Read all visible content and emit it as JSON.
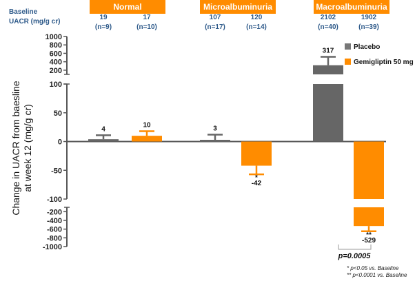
{
  "chart_data": {
    "type": "bar",
    "ylabel": [
      "Change in UACR from baesline",
      "at week 12 (mg/g cr)"
    ],
    "baseline_label": [
      "Baseline",
      "UACR (mg/g cr)"
    ],
    "groups": [
      "Normal",
      "Microalbuminuria",
      "Macroalbuminuria"
    ],
    "series": [
      {
        "name": "Placebo",
        "color": "#666666",
        "values": [
          4,
          3,
          317
        ],
        "errors": [
          7,
          9,
          200
        ],
        "labels": [
          "4",
          "3",
          "317"
        ],
        "baseline": [
          "19",
          "107",
          "2102"
        ],
        "n": [
          "(n=9)",
          "(n=17)",
          "(n=40)"
        ],
        "sig": [
          "",
          "",
          ""
        ]
      },
      {
        "name": "Gemigliptin 50 mg",
        "color": "#ff8c00",
        "values": [
          10,
          -42,
          -529
        ],
        "errors": [
          8,
          15,
          120
        ],
        "labels": [
          "10",
          "-42",
          "-529"
        ],
        "baseline": [
          "17",
          "120",
          "1902"
        ],
        "n": [
          "(n=10)",
          "(n=14)",
          "(n=39)"
        ],
        "sig": [
          "",
          "*",
          "**"
        ]
      }
    ],
    "axis_segments": [
      {
        "range": [
          100,
          1000
        ],
        "ticks": [
          "1000",
          "800",
          "600",
          "400",
          "200"
        ],
        "tick_values": [
          1000,
          800,
          600,
          400,
          200
        ]
      },
      {
        "range": [
          -100,
          100
        ],
        "ticks": [
          "100",
          "50",
          "0",
          "-50",
          "-100"
        ],
        "tick_values": [
          100,
          50,
          0,
          -50,
          -100
        ]
      },
      {
        "range": [
          -1000,
          -100
        ],
        "ticks": [
          "-200",
          "-400",
          "-600",
          "-800",
          "-1000"
        ],
        "tick_values": [
          -200,
          -400,
          -600,
          -800,
          -1000
        ]
      }
    ],
    "comparison": "p=0.0005",
    "footnotes": [
      "*  p<0.05 vs. Baseline",
      "**  p<0.0001 vs. Baseline"
    ]
  }
}
